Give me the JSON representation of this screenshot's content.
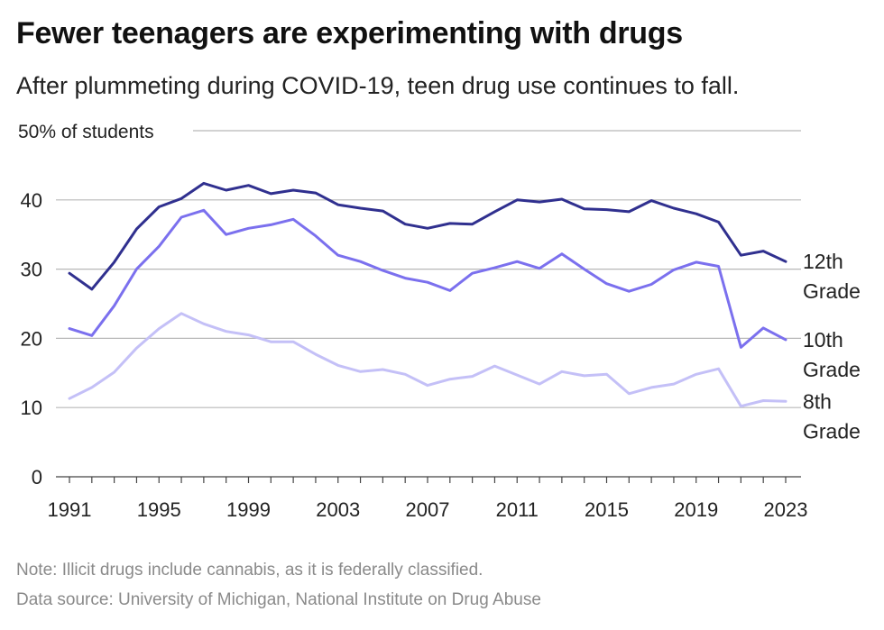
{
  "chart_data": {
    "type": "line",
    "title": "Fewer teenagers are experimenting with drugs",
    "subtitle": "After plummeting during COVID-19, teen drug use continues to fall.",
    "ylabel_unit": "% of students",
    "ylim": [
      0,
      50
    ],
    "yticks": [
      0,
      10,
      20,
      30,
      40,
      50
    ],
    "xlim": [
      1991,
      2023
    ],
    "xticks": [
      1991,
      1995,
      1999,
      2003,
      2007,
      2011,
      2015,
      2019,
      2023
    ],
    "grid": "horizontal",
    "x": [
      1991,
      1992,
      1993,
      1994,
      1995,
      1996,
      1997,
      1998,
      1999,
      2000,
      2001,
      2002,
      2003,
      2004,
      2005,
      2006,
      2007,
      2008,
      2009,
      2010,
      2011,
      2012,
      2013,
      2014,
      2015,
      2016,
      2017,
      2018,
      2019,
      2020,
      2021,
      2022,
      2023
    ],
    "series": [
      {
        "name": "12th Grade",
        "label_lines": [
          "12th",
          "Grade"
        ],
        "color": "#30308f",
        "values": [
          29.4,
          27.1,
          31.0,
          35.8,
          39.0,
          40.2,
          42.4,
          41.4,
          42.1,
          40.9,
          41.4,
          41.0,
          39.3,
          38.8,
          38.4,
          36.5,
          35.9,
          36.6,
          36.5,
          38.3,
          40.0,
          39.7,
          40.1,
          38.7,
          38.6,
          38.3,
          39.9,
          38.8,
          38.0,
          36.8,
          32.0,
          32.6,
          31.1
        ]
      },
      {
        "name": "10th Grade",
        "label_lines": [
          "10th",
          "Grade"
        ],
        "color": "#7b70ee",
        "values": [
          21.4,
          20.4,
          24.7,
          30.0,
          33.3,
          37.5,
          38.5,
          35.0,
          35.9,
          36.4,
          37.2,
          34.8,
          32.0,
          31.1,
          29.8,
          28.7,
          28.1,
          26.9,
          29.4,
          30.2,
          31.1,
          30.1,
          32.2,
          30.0,
          27.9,
          26.8,
          27.8,
          29.9,
          31.0,
          30.4,
          18.7,
          21.5,
          19.8
        ]
      },
      {
        "name": "8th Grade",
        "label_lines": [
          "8th",
          "Grade"
        ],
        "color": "#c4c0f7",
        "values": [
          11.3,
          12.9,
          15.1,
          18.6,
          21.4,
          23.6,
          22.1,
          21.0,
          20.5,
          19.5,
          19.5,
          17.7,
          16.1,
          15.2,
          15.5,
          14.8,
          13.2,
          14.1,
          14.5,
          16.0,
          14.7,
          13.4,
          15.2,
          14.6,
          14.8,
          12.0,
          12.9,
          13.4,
          14.8,
          15.6,
          10.2,
          11.0,
          10.9
        ]
      }
    ]
  },
  "note": "Note: Illicit drugs include cannabis, as it is federally classified.",
  "source": "Data source: University of Michigan, National Institute on Drug Abuse"
}
